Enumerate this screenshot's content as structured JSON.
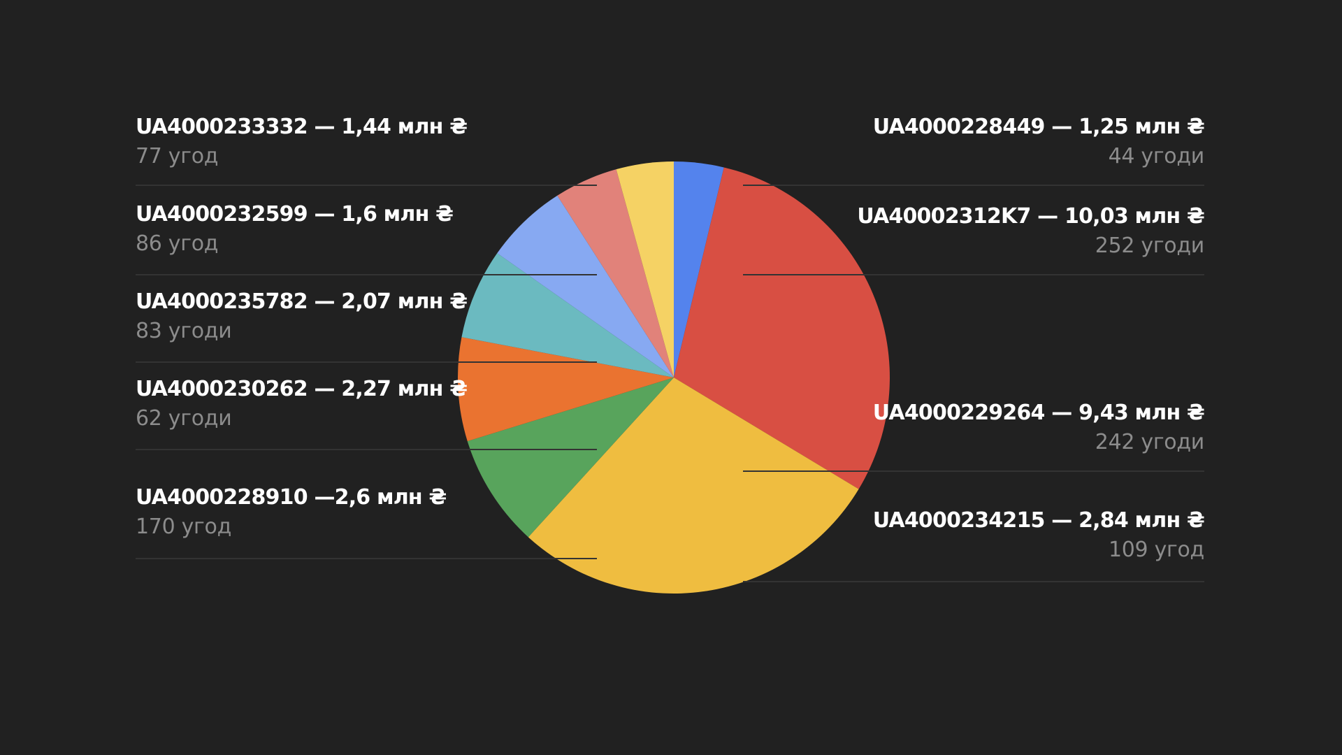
{
  "chart_data": {
    "type": "pie",
    "title": "",
    "start_angle_deg": 0,
    "direction": "clockwise",
    "slices": [
      {
        "label": "UA4000228449",
        "amount": "1,25 млн ₴",
        "value": 1.25,
        "deals": "44 угоди",
        "color": "#5483ed",
        "side": "right"
      },
      {
        "label": "UA40002312K7",
        "amount": "10,03 млн ₴",
        "value": 10.03,
        "deals": "252 угоди",
        "color": "#d84f43",
        "side": "right"
      },
      {
        "label": "UA4000229264",
        "amount": "9,43 млн ₴",
        "value": 9.43,
        "deals": "242 угоди",
        "color": "#efbd40",
        "side": "right"
      },
      {
        "label": "UA4000234215",
        "amount": "2,84 млн ₴",
        "value": 2.84,
        "deals": "109 угод",
        "color": "#58a45c",
        "side": "right"
      },
      {
        "label": "UA4000228910",
        "amount": "2,6 млн ₴",
        "value": 2.6,
        "deals": "170 угод",
        "color": "#ea7330",
        "side": "left"
      },
      {
        "label": "UA4000230262",
        "amount": "2,27 млн ₴",
        "value": 2.27,
        "deals": "62 угоди",
        "color": "#6bbac0",
        "side": "left"
      },
      {
        "label": "UA4000235782",
        "amount": "2,07 млн ₴",
        "value": 2.07,
        "deals": "83 угоди",
        "color": "#87a9f2",
        "side": "left"
      },
      {
        "label": "UA4000232599",
        "amount": "1,6 млн ₴",
        "value": 1.6,
        "deals": "86 угод",
        "color": "#e1827a",
        "side": "left"
      },
      {
        "label": "UA4000233332",
        "amount": "1,44 млн ₴",
        "value": 1.44,
        "deals": "77 угод",
        "color": "#f5d264",
        "side": "left"
      }
    ],
    "legend": {
      "left": [
        {
          "title": "UA4000233332 — 1,44 млн ₴",
          "sub": "77 угод"
        },
        {
          "title": "UA4000232599 — 1,6 млн ₴",
          "sub": "86 угод"
        },
        {
          "title": "UA4000235782 — 2,07 млн ₴",
          "sub": "83 угоди"
        },
        {
          "title": "UA4000230262 — 2,27 млн ₴",
          "sub": "62 угоди"
        },
        {
          "title": "UA4000228910 —2,6 млн ₴",
          "sub": "170 угод"
        }
      ],
      "right": [
        {
          "title": "UA4000228449 — 1,25 млн ₴",
          "sub": "44 угоди"
        },
        {
          "title": "UA40002312K7 — 10,03 млн ₴",
          "sub": "252 угоди"
        },
        {
          "title": "UA4000229264 — 9,43 млн ₴",
          "sub": "242 угоди"
        },
        {
          "title": "UA4000234215 — 2,84 млн ₴",
          "sub": "109 угод"
        }
      ]
    }
  }
}
